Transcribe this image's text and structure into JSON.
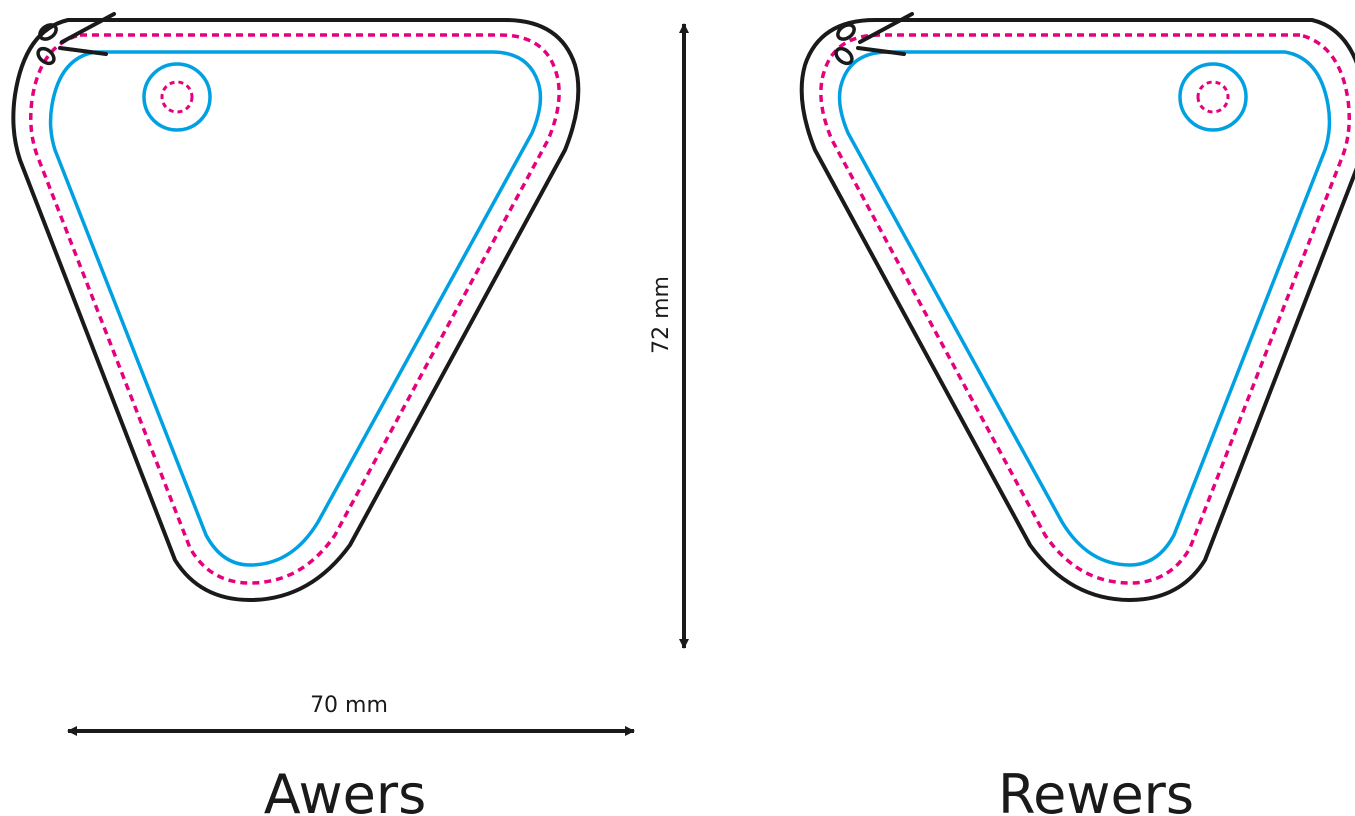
{
  "colors": {
    "cut_line": "#1a1a1a",
    "bleed_line": "#e6007e",
    "safe_line": "#00a0e3",
    "scissors": "#1a1a1a"
  },
  "icons": {
    "scissors": "scissors-icon"
  },
  "dimensions": {
    "width_label": "70 mm",
    "height_label": "72 mm"
  },
  "sides": {
    "front_label": "Awers",
    "back_label": "Rewers"
  }
}
